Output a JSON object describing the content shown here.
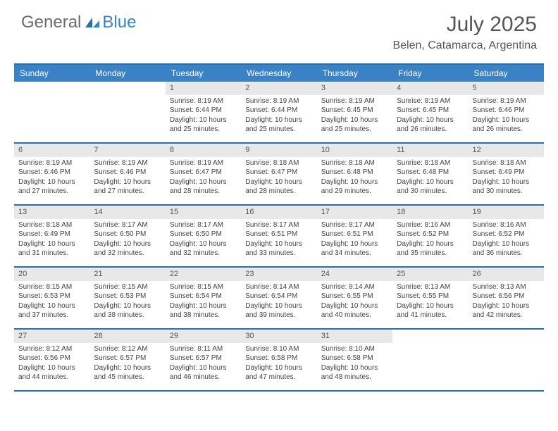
{
  "brand": {
    "general": "General",
    "blue": "Blue"
  },
  "title": "July 2025",
  "location": "Belen, Catamarca, Argentina",
  "colors": {
    "header_bg": "#3b82c4",
    "border": "#2a6fa8",
    "daynum_bg": "#e8e8e8",
    "text": "#444444",
    "title_text": "#555555"
  },
  "weekdays": [
    "Sunday",
    "Monday",
    "Tuesday",
    "Wednesday",
    "Thursday",
    "Friday",
    "Saturday"
  ],
  "weeks": [
    [
      {
        "empty": true
      },
      {
        "empty": true
      },
      {
        "num": "1",
        "sunrise": "Sunrise: 8:19 AM",
        "sunset": "Sunset: 6:44 PM",
        "daylight": "Daylight: 10 hours and 25 minutes."
      },
      {
        "num": "2",
        "sunrise": "Sunrise: 8:19 AM",
        "sunset": "Sunset: 6:44 PM",
        "daylight": "Daylight: 10 hours and 25 minutes."
      },
      {
        "num": "3",
        "sunrise": "Sunrise: 8:19 AM",
        "sunset": "Sunset: 6:45 PM",
        "daylight": "Daylight: 10 hours and 25 minutes."
      },
      {
        "num": "4",
        "sunrise": "Sunrise: 8:19 AM",
        "sunset": "Sunset: 6:45 PM",
        "daylight": "Daylight: 10 hours and 26 minutes."
      },
      {
        "num": "5",
        "sunrise": "Sunrise: 8:19 AM",
        "sunset": "Sunset: 6:46 PM",
        "daylight": "Daylight: 10 hours and 26 minutes."
      }
    ],
    [
      {
        "num": "6",
        "sunrise": "Sunrise: 8:19 AM",
        "sunset": "Sunset: 6:46 PM",
        "daylight": "Daylight: 10 hours and 27 minutes."
      },
      {
        "num": "7",
        "sunrise": "Sunrise: 8:19 AM",
        "sunset": "Sunset: 6:46 PM",
        "daylight": "Daylight: 10 hours and 27 minutes."
      },
      {
        "num": "8",
        "sunrise": "Sunrise: 8:19 AM",
        "sunset": "Sunset: 6:47 PM",
        "daylight": "Daylight: 10 hours and 28 minutes."
      },
      {
        "num": "9",
        "sunrise": "Sunrise: 8:18 AM",
        "sunset": "Sunset: 6:47 PM",
        "daylight": "Daylight: 10 hours and 28 minutes."
      },
      {
        "num": "10",
        "sunrise": "Sunrise: 8:18 AM",
        "sunset": "Sunset: 6:48 PM",
        "daylight": "Daylight: 10 hours and 29 minutes."
      },
      {
        "num": "11",
        "sunrise": "Sunrise: 8:18 AM",
        "sunset": "Sunset: 6:48 PM",
        "daylight": "Daylight: 10 hours and 30 minutes."
      },
      {
        "num": "12",
        "sunrise": "Sunrise: 8:18 AM",
        "sunset": "Sunset: 6:49 PM",
        "daylight": "Daylight: 10 hours and 30 minutes."
      }
    ],
    [
      {
        "num": "13",
        "sunrise": "Sunrise: 8:18 AM",
        "sunset": "Sunset: 6:49 PM",
        "daylight": "Daylight: 10 hours and 31 minutes."
      },
      {
        "num": "14",
        "sunrise": "Sunrise: 8:17 AM",
        "sunset": "Sunset: 6:50 PM",
        "daylight": "Daylight: 10 hours and 32 minutes."
      },
      {
        "num": "15",
        "sunrise": "Sunrise: 8:17 AM",
        "sunset": "Sunset: 6:50 PM",
        "daylight": "Daylight: 10 hours and 32 minutes."
      },
      {
        "num": "16",
        "sunrise": "Sunrise: 8:17 AM",
        "sunset": "Sunset: 6:51 PM",
        "daylight": "Daylight: 10 hours and 33 minutes."
      },
      {
        "num": "17",
        "sunrise": "Sunrise: 8:17 AM",
        "sunset": "Sunset: 6:51 PM",
        "daylight": "Daylight: 10 hours and 34 minutes."
      },
      {
        "num": "18",
        "sunrise": "Sunrise: 8:16 AM",
        "sunset": "Sunset: 6:52 PM",
        "daylight": "Daylight: 10 hours and 35 minutes."
      },
      {
        "num": "19",
        "sunrise": "Sunrise: 8:16 AM",
        "sunset": "Sunset: 6:52 PM",
        "daylight": "Daylight: 10 hours and 36 minutes."
      }
    ],
    [
      {
        "num": "20",
        "sunrise": "Sunrise: 8:15 AM",
        "sunset": "Sunset: 6:53 PM",
        "daylight": "Daylight: 10 hours and 37 minutes."
      },
      {
        "num": "21",
        "sunrise": "Sunrise: 8:15 AM",
        "sunset": "Sunset: 6:53 PM",
        "daylight": "Daylight: 10 hours and 38 minutes."
      },
      {
        "num": "22",
        "sunrise": "Sunrise: 8:15 AM",
        "sunset": "Sunset: 6:54 PM",
        "daylight": "Daylight: 10 hours and 38 minutes."
      },
      {
        "num": "23",
        "sunrise": "Sunrise: 8:14 AM",
        "sunset": "Sunset: 6:54 PM",
        "daylight": "Daylight: 10 hours and 39 minutes."
      },
      {
        "num": "24",
        "sunrise": "Sunrise: 8:14 AM",
        "sunset": "Sunset: 6:55 PM",
        "daylight": "Daylight: 10 hours and 40 minutes."
      },
      {
        "num": "25",
        "sunrise": "Sunrise: 8:13 AM",
        "sunset": "Sunset: 6:55 PM",
        "daylight": "Daylight: 10 hours and 41 minutes."
      },
      {
        "num": "26",
        "sunrise": "Sunrise: 8:13 AM",
        "sunset": "Sunset: 6:56 PM",
        "daylight": "Daylight: 10 hours and 42 minutes."
      }
    ],
    [
      {
        "num": "27",
        "sunrise": "Sunrise: 8:12 AM",
        "sunset": "Sunset: 6:56 PM",
        "daylight": "Daylight: 10 hours and 44 minutes."
      },
      {
        "num": "28",
        "sunrise": "Sunrise: 8:12 AM",
        "sunset": "Sunset: 6:57 PM",
        "daylight": "Daylight: 10 hours and 45 minutes."
      },
      {
        "num": "29",
        "sunrise": "Sunrise: 8:11 AM",
        "sunset": "Sunset: 6:57 PM",
        "daylight": "Daylight: 10 hours and 46 minutes."
      },
      {
        "num": "30",
        "sunrise": "Sunrise: 8:10 AM",
        "sunset": "Sunset: 6:58 PM",
        "daylight": "Daylight: 10 hours and 47 minutes."
      },
      {
        "num": "31",
        "sunrise": "Sunrise: 8:10 AM",
        "sunset": "Sunset: 6:58 PM",
        "daylight": "Daylight: 10 hours and 48 minutes."
      },
      {
        "empty": true
      },
      {
        "empty": true
      }
    ]
  ]
}
